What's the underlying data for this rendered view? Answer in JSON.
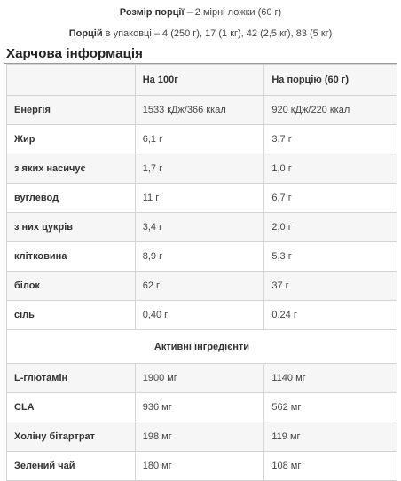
{
  "serving": {
    "size_label": "Розмір порції",
    "size_value": " – 2 мірні ложки (60 г)",
    "per_label": "Порцій",
    "per_value": " в упаковці – 4 (250 г), 17 (1 кг), 42 (2,5 кг), 83 (5 кг)"
  },
  "section_title": "Харчова інформація",
  "table": {
    "headers": [
      "",
      "На 100г",
      "На порцію (60 г)"
    ],
    "rows": [
      [
        "Енергія",
        "1533 кДж/366 ккал",
        "920 кДж/220 ккал"
      ],
      [
        "Жир",
        "6,1 г",
        "3,7 г"
      ],
      [
        "з яких насичує",
        "1,7 г",
        "1,0 г"
      ],
      [
        "вуглевод",
        "11 г",
        "6,7 г"
      ],
      [
        "з них цукрів",
        "3,4 г",
        "2,0 г"
      ],
      [
        "клітковина",
        "8,9 г",
        "5,3 г"
      ],
      [
        "білок",
        "62 г",
        "37 г"
      ],
      [
        "сіль",
        "0,40 г",
        "0,24 г"
      ]
    ],
    "subheader": "Активні інгредієнти",
    "active_rows": [
      [
        "L-глютамін",
        "1900 мг",
        "1140 мг"
      ],
      [
        "CLA",
        "936 мг",
        "562 мг"
      ],
      [
        "Холіну бітартрат",
        "198 мг",
        "119 мг"
      ],
      [
        "Зелений чай",
        "180 мг",
        "108 мг"
      ]
    ]
  }
}
